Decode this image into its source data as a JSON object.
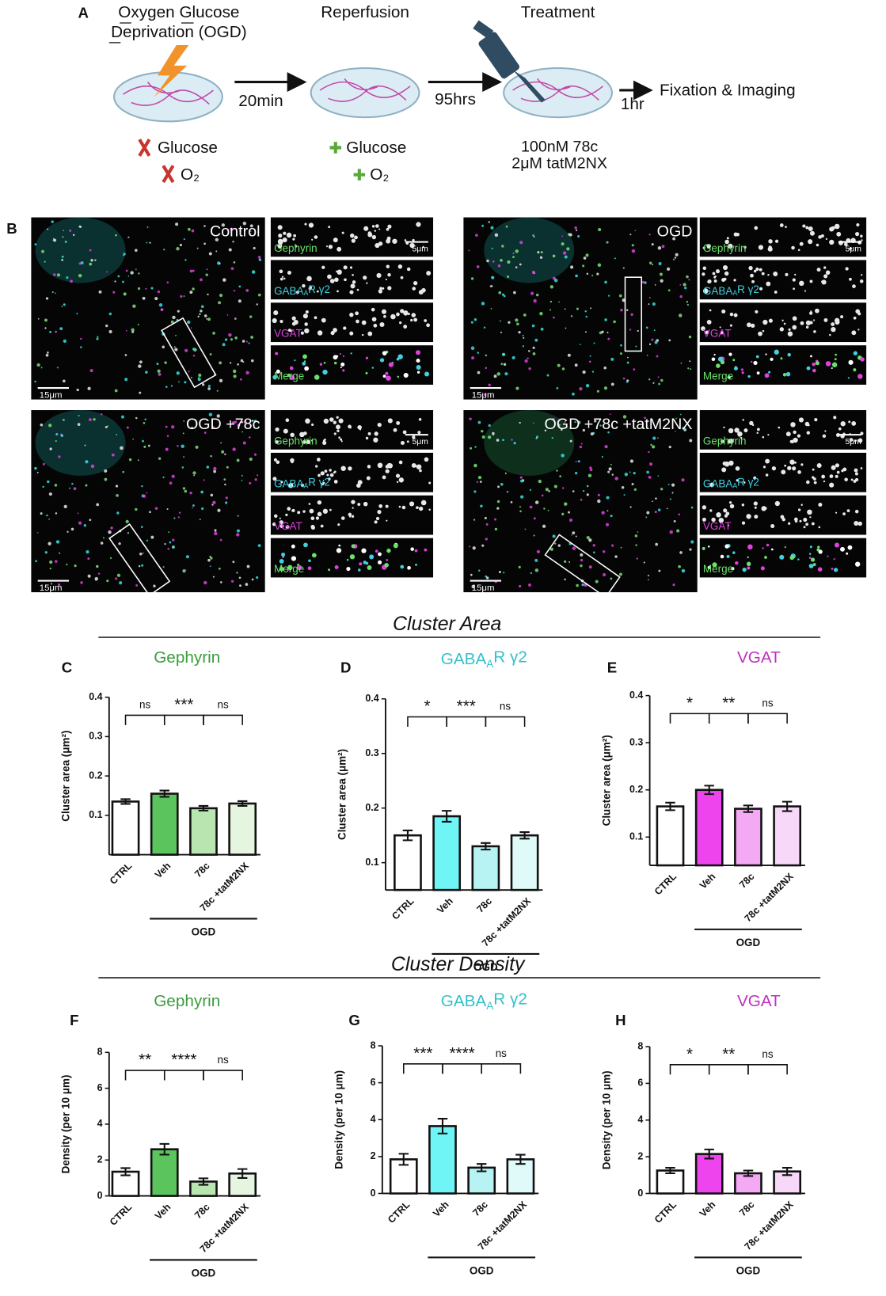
{
  "panel_a": {
    "letter": "A",
    "step_titles": [
      [
        "Oxygen Glucose",
        "Deprivation (OGD)"
      ],
      [
        "Reperfusion"
      ],
      [
        "Treatment"
      ]
    ],
    "intervals": [
      "20min",
      "95hrs",
      "1hr"
    ],
    "endpoint": "Fixation & Imaging",
    "removed": [
      "Glucose",
      "O₂"
    ],
    "added": [
      "Glucose",
      "O₂"
    ],
    "treatment": [
      "100nM 78c",
      "2μM tatM2NX"
    ]
  },
  "panel_b": {
    "letter": "B",
    "panels": [
      {
        "label": "Control",
        "scale": "15μm",
        "inset_scale": "5μm"
      },
      {
        "label": "OGD",
        "scale": "15μm",
        "inset_scale": "5μm"
      },
      {
        "label": "OGD +78c",
        "scale": "15μm",
        "inset_scale": "5μm"
      },
      {
        "label": "OGD +78c +tatM2NX",
        "scale": "15μm",
        "inset_scale": "5μm"
      }
    ],
    "channels": [
      [
        "Gephyrin"
      ],
      [
        "GABA",
        "A",
        "R γ2"
      ],
      [
        "VGAT"
      ],
      [
        "Merge"
      ]
    ]
  },
  "section_titles": [
    "Cluster Area",
    "Cluster Density"
  ],
  "chart_data": [
    {
      "type": "bar",
      "letter": "C",
      "title": [
        "Gephyrin"
      ],
      "title_color": "#3c9c3c",
      "ylabel": "Cluster area (μm²)",
      "categories": [
        "CTRL",
        "Veh",
        "78c",
        "78c +tatM2NX"
      ],
      "values": [
        0.135,
        0.155,
        0.118,
        0.13
      ],
      "errors": [
        0.006,
        0.008,
        0.006,
        0.006
      ],
      "colors": [
        "#ffffff",
        "#5cc45c",
        "#b9e6b0",
        "#e6f5e0"
      ],
      "ylim": [
        0,
        0.4
      ],
      "yticks": [
        0.1,
        0.2,
        0.3,
        0.4
      ],
      "significance": [
        "ns",
        "***",
        "ns"
      ],
      "group_label": "OGD"
    },
    {
      "type": "bar",
      "letter": "D",
      "title": [
        "GABA",
        "A",
        "R γ2"
      ],
      "title_color": "#35c0c9",
      "ylabel": "Cluster area (μm²)",
      "categories": [
        "CTRL",
        "Veh",
        "78c",
        "78c +tatM2NX"
      ],
      "values": [
        0.15,
        0.185,
        0.13,
        0.15
      ],
      "errors": [
        0.009,
        0.01,
        0.006,
        0.006
      ],
      "colors": [
        "#ffffff",
        "#6ff5f5",
        "#b8f3f3",
        "#e0fafa"
      ],
      "ylim": [
        0.05,
        0.4
      ],
      "yticks": [
        0.1,
        0.2,
        0.3,
        0.4
      ],
      "significance": [
        "*",
        "***",
        "ns"
      ],
      "group_label": "OGD"
    },
    {
      "type": "bar",
      "letter": "E",
      "title": [
        "VGAT"
      ],
      "title_color": "#c030c0",
      "ylabel": "Cluster area (μm²)",
      "categories": [
        "CTRL",
        "Veh",
        "78c",
        "78c +tatM2NX"
      ],
      "values": [
        0.165,
        0.2,
        0.16,
        0.165
      ],
      "errors": [
        0.008,
        0.009,
        0.007,
        0.01
      ],
      "colors": [
        "#ffffff",
        "#ee44ee",
        "#f3a9f3",
        "#f8d8f8"
      ],
      "ylim": [
        0.04,
        0.4
      ],
      "yticks": [
        0.1,
        0.2,
        0.3,
        0.4
      ],
      "significance": [
        "*",
        "**",
        "ns"
      ],
      "group_label": "OGD"
    },
    {
      "type": "bar",
      "letter": "F",
      "title": [
        "Gephyrin"
      ],
      "title_color": "#3c9c3c",
      "ylabel": "Density (per 10 μm)",
      "categories": [
        "CTRL",
        "Veh",
        "78c",
        "78c +tatM2NX"
      ],
      "values": [
        1.35,
        2.6,
        0.8,
        1.25
      ],
      "errors": [
        0.2,
        0.3,
        0.18,
        0.25
      ],
      "colors": [
        "#ffffff",
        "#5cc45c",
        "#b9e6b0",
        "#e6f5e0"
      ],
      "ylim": [
        0,
        8
      ],
      "yticks": [
        0,
        2,
        4,
        6,
        8
      ],
      "significance": [
        "**",
        "****",
        "ns"
      ],
      "group_label": "OGD"
    },
    {
      "type": "bar",
      "letter": "G",
      "title": [
        "GABA",
        "A",
        "R γ2"
      ],
      "title_color": "#35c0c9",
      "ylabel": "Density (per 10 μm)",
      "categories": [
        "CTRL",
        "Veh",
        "78c",
        "78c +tatM2NX"
      ],
      "values": [
        1.85,
        3.65,
        1.4,
        1.85
      ],
      "errors": [
        0.3,
        0.4,
        0.2,
        0.25
      ],
      "colors": [
        "#ffffff",
        "#6ff5f5",
        "#b8f3f3",
        "#e0fafa"
      ],
      "ylim": [
        0,
        8
      ],
      "yticks": [
        0,
        2,
        4,
        6,
        8
      ],
      "significance": [
        "***",
        "****",
        "ns"
      ],
      "group_label": "OGD"
    },
    {
      "type": "bar",
      "letter": "H",
      "title": [
        "VGAT"
      ],
      "title_color": "#c030c0",
      "ylabel": "Density (per 10 μm)",
      "categories": [
        "CTRL",
        "Veh",
        "78c",
        "78c +tatM2NX"
      ],
      "values": [
        1.25,
        2.15,
        1.1,
        1.2
      ],
      "errors": [
        0.15,
        0.25,
        0.15,
        0.2
      ],
      "colors": [
        "#ffffff",
        "#ee44ee",
        "#f3a9f3",
        "#f8d8f8"
      ],
      "ylim": [
        0,
        8
      ],
      "yticks": [
        0,
        2,
        4,
        6,
        8
      ],
      "significance": [
        "*",
        "**",
        "ns"
      ],
      "group_label": "OGD"
    }
  ]
}
